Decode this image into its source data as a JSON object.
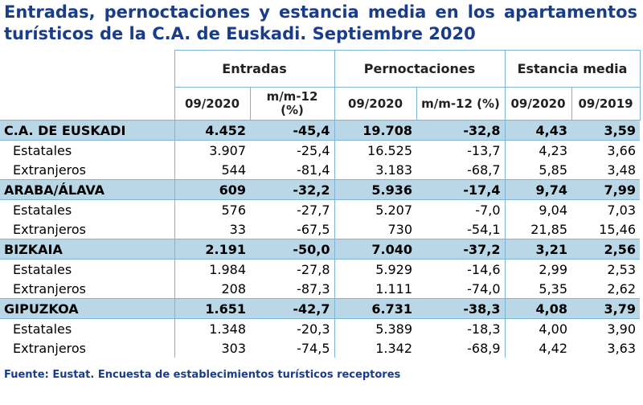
{
  "title": "Entradas, pernoctaciones y estancia media en los apartamentos turísticos de la C.A. de Euskadi. Septiembre 2020",
  "groups": {
    "entradas": "Entradas",
    "pernoctaciones": "Pernoctaciones",
    "estancia": "Estancia media"
  },
  "subheaders": {
    "ent_period": "09/2020",
    "ent_var": "m/m-12 (%)",
    "per_period": "09/2020",
    "per_var": "m/m-12 (%)",
    "est_2020": "09/2020",
    "est_2019": "09/2019"
  },
  "rows": [
    {
      "label": "C.A. DE EUSKADI",
      "type": "region",
      "values": [
        "4.452",
        "-45,4",
        "19.708",
        "-32,8",
        "4,43",
        "3,59"
      ]
    },
    {
      "label": "Estatales",
      "type": "sub",
      "values": [
        "3.907",
        "-25,4",
        "16.525",
        "-13,7",
        "4,23",
        "3,66"
      ]
    },
    {
      "label": "Extranjeros",
      "type": "sub",
      "values": [
        "544",
        "-81,4",
        "3.183",
        "-68,7",
        "5,85",
        "3,48"
      ]
    },
    {
      "label": "ARABA/ÁLAVA",
      "type": "region",
      "values": [
        "609",
        "-32,2",
        "5.936",
        "-17,4",
        "9,74",
        "7,99"
      ]
    },
    {
      "label": "Estatales",
      "type": "sub",
      "values": [
        "576",
        "-27,7",
        "5.207",
        "-7,0",
        "9,04",
        "7,03"
      ]
    },
    {
      "label": "Extranjeros",
      "type": "sub",
      "values": [
        "33",
        "-67,5",
        "730",
        "-54,1",
        "21,85",
        "15,46"
      ]
    },
    {
      "label": "BIZKAIA",
      "type": "region",
      "values": [
        "2.191",
        "-50,0",
        "7.040",
        "-37,2",
        "3,21",
        "2,56"
      ]
    },
    {
      "label": "Estatales",
      "type": "sub",
      "values": [
        "1.984",
        "-27,8",
        "5.929",
        "-14,6",
        "2,99",
        "2,53"
      ]
    },
    {
      "label": "Extranjeros",
      "type": "sub",
      "values": [
        "208",
        "-87,3",
        "1.111",
        "-74,0",
        "5,35",
        "2,62"
      ]
    },
    {
      "label": "GIPUZKOA",
      "type": "region",
      "values": [
        "1.651",
        "-42,7",
        "6.731",
        "-38,3",
        "4,08",
        "3,79"
      ]
    },
    {
      "label": "Estatales",
      "type": "sub",
      "values": [
        "1.348",
        "-20,3",
        "5.389",
        "-18,3",
        "4,00",
        "3,90"
      ]
    },
    {
      "label": "Extranjeros",
      "type": "sub",
      "values": [
        "303",
        "-74,5",
        "1.342",
        "-68,9",
        "4,42",
        "3,63"
      ]
    }
  ],
  "source": "Fuente: Eustat. Encuesta de establecimientos turísticos receptores",
  "colors": {
    "title": "#1a3d8a",
    "region_band": "#b9d7e6",
    "border": "#7fb3d3"
  }
}
